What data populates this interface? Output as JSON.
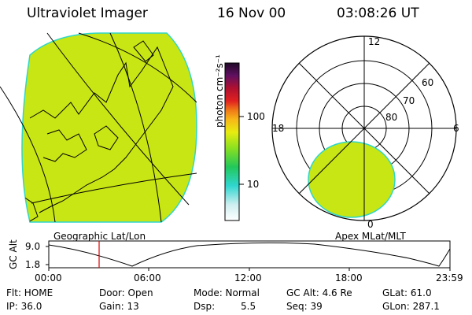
{
  "header": {
    "instrument": "Ultraviolet Imager",
    "date": "16 Nov 00",
    "time": "03:08:26 UT"
  },
  "colorbar": {
    "unit_label": "photon cm⁻²s⁻¹",
    "ticks": [
      "100",
      "10"
    ]
  },
  "left_panel": {
    "label": "Geographic Lat/Lon"
  },
  "right_panel": {
    "label": "Apex MLat/MLT",
    "mlt_labels": {
      "top": "12",
      "left": "18",
      "right": "6",
      "bottom": "0"
    },
    "lat_labels": [
      "60",
      "70",
      "80"
    ]
  },
  "altitude_plot": {
    "ylabel": "GC Alt",
    "yticks": [
      "9.0",
      "1.8"
    ],
    "xticks": [
      "00:00",
      "06:00",
      "12:00",
      "18:00",
      "23:59"
    ],
    "current_time_marker": "03:08"
  },
  "footer": {
    "flt": "Flt: HOME",
    "ip": "IP: 36.0",
    "door": "Door: Open",
    "gain": "Gain: 13",
    "mode": "Mode: Normal",
    "dsp_label": "Dsp:",
    "dsp_value": "5.5",
    "gcalt": "GC Alt: 4.6 Re",
    "seq": "Seq: 39",
    "glat": "GLat:  61.0",
    "glon": "GLon: 287.1"
  },
  "colors": {
    "aurora_fill": "#c8e614",
    "aurora_edge": "#2fd6c8",
    "marker": "#e00000"
  }
}
